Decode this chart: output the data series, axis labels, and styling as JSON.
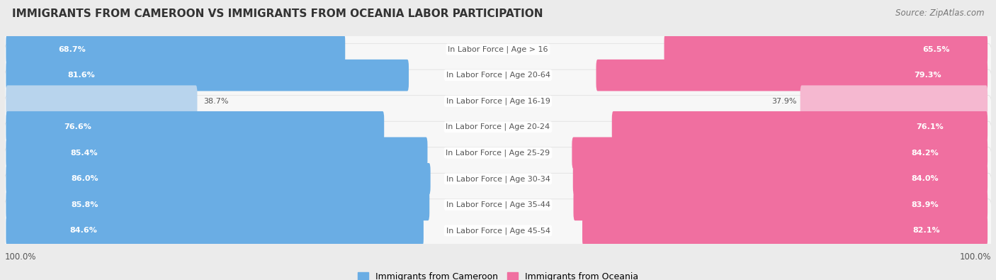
{
  "title": "IMMIGRANTS FROM CAMEROON VS IMMIGRANTS FROM OCEANIA LABOR PARTICIPATION",
  "source": "Source: ZipAtlas.com",
  "categories": [
    "In Labor Force | Age > 16",
    "In Labor Force | Age 20-64",
    "In Labor Force | Age 16-19",
    "In Labor Force | Age 20-24",
    "In Labor Force | Age 25-29",
    "In Labor Force | Age 30-34",
    "In Labor Force | Age 35-44",
    "In Labor Force | Age 45-54"
  ],
  "cameroon_values": [
    68.7,
    81.6,
    38.7,
    76.6,
    85.4,
    86.0,
    85.8,
    84.6
  ],
  "oceania_values": [
    65.5,
    79.3,
    37.9,
    76.1,
    84.2,
    84.0,
    83.9,
    82.1
  ],
  "cameroon_color": "#6aade4",
  "cameroon_color_light": "#b8d4ed",
  "oceania_color": "#f06fa0",
  "oceania_color_light": "#f5b8d0",
  "bg_color": "#ebebeb",
  "row_bg": "#f7f7f7",
  "row_bg_stroke": "#dddddd",
  "bar_height": 0.62,
  "max_val": 100.0,
  "legend_cameroon": "Immigrants from Cameroon",
  "legend_oceania": "Immigrants from Oceania",
  "title_fontsize": 11,
  "source_fontsize": 8.5,
  "label_fontsize": 8,
  "value_fontsize": 8
}
